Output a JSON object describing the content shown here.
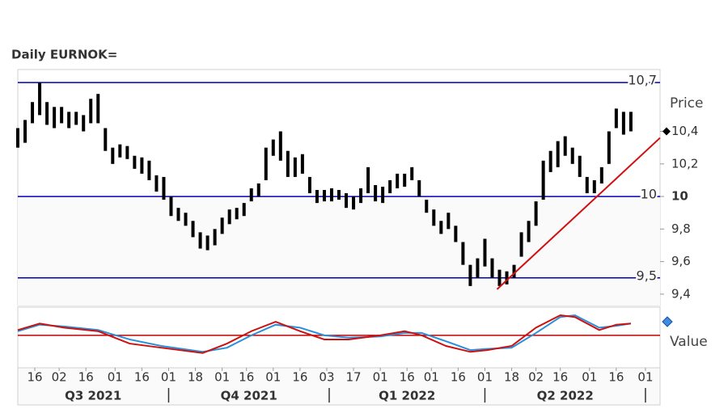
{
  "chart_data": [
    {
      "type": "ohlc",
      "title": "Daily EURNOK=",
      "axis_label": "Price",
      "color": "#000000",
      "xlim": [
        0,
        264
      ],
      "ylim": [
        9.33,
        10.78
      ],
      "yticks": [
        {
          "value": 9.4,
          "label": "9,4"
        },
        {
          "value": 9.6,
          "label": "9,6"
        },
        {
          "value": 9.8,
          "label": "9,8"
        },
        10,
        {
          "value": 10.2,
          "label": "10,2"
        },
        {
          "value": 10.4,
          "label": "10,4"
        }
      ],
      "last_marker": 10.4,
      "levels": [
        {
          "value": 10.7,
          "label": "10,7"
        },
        {
          "value": 10,
          "label": "10"
        },
        {
          "value": 9.5,
          "label": "9,5"
        }
      ],
      "level_color": "#0000b0",
      "trendline": {
        "x": [
          197,
          264
        ],
        "y": [
          9.43,
          10.36
        ],
        "color": "#d01010"
      },
      "x": [
        0,
        3,
        6,
        9,
        12,
        15,
        18,
        21,
        24,
        27,
        30,
        33,
        36,
        39,
        42,
        45,
        48,
        51,
        54,
        57,
        60,
        63,
        66,
        69,
        72,
        75,
        78,
        81,
        84,
        87,
        90,
        93,
        96,
        99,
        102,
        105,
        108,
        111,
        114,
        117,
        120,
        123,
        126,
        129,
        132,
        135,
        138,
        141,
        144,
        147,
        150,
        153,
        156,
        159,
        162,
        165,
        168,
        171,
        174,
        177,
        180,
        183,
        186,
        189,
        192,
        195,
        198,
        201,
        204,
        207,
        210,
        213,
        216,
        219,
        222,
        225,
        228,
        231,
        234,
        237,
        240,
        243,
        246,
        249,
        252
      ],
      "high": [
        10.42,
        10.47,
        10.58,
        10.7,
        10.58,
        10.55,
        10.55,
        10.52,
        10.52,
        10.5,
        10.6,
        10.63,
        10.42,
        10.3,
        10.32,
        10.31,
        10.25,
        10.24,
        10.22,
        10.13,
        10.12,
        10.0,
        9.93,
        9.9,
        9.85,
        9.78,
        9.76,
        9.8,
        9.87,
        9.92,
        9.93,
        9.96,
        10.05,
        10.08,
        10.3,
        10.35,
        10.4,
        10.28,
        10.24,
        10.26,
        10.12,
        10.04,
        10.04,
        10.05,
        10.04,
        10.02,
        10.0,
        10.05,
        10.18,
        10.07,
        10.06,
        10.1,
        10.14,
        10.14,
        10.18,
        10.1,
        9.98,
        9.92,
        9.85,
        9.9,
        9.82,
        9.72,
        9.58,
        9.62,
        9.74,
        9.62,
        9.55,
        9.54,
        9.58,
        9.78,
        9.85,
        9.97,
        10.22,
        10.28,
        10.34,
        10.37,
        10.3,
        10.25,
        10.12,
        10.1,
        10.18,
        10.4,
        10.54,
        10.52,
        10.52
      ],
      "low": [
        10.3,
        10.33,
        10.45,
        10.5,
        10.44,
        10.42,
        10.45,
        10.42,
        10.44,
        10.4,
        10.45,
        10.45,
        10.28,
        10.2,
        10.24,
        10.23,
        10.17,
        10.14,
        10.1,
        10.03,
        9.98,
        9.88,
        9.85,
        9.82,
        9.75,
        9.68,
        9.67,
        9.7,
        9.77,
        9.83,
        9.86,
        9.88,
        9.97,
        10.0,
        10.1,
        10.25,
        10.22,
        10.12,
        10.12,
        10.14,
        10.02,
        9.96,
        9.97,
        9.97,
        9.98,
        9.93,
        9.92,
        9.96,
        10.02,
        9.97,
        9.96,
        10.02,
        10.05,
        10.06,
        10.1,
        10.0,
        9.9,
        9.82,
        9.77,
        9.8,
        9.72,
        9.58,
        9.45,
        9.5,
        9.57,
        9.5,
        9.45,
        9.46,
        9.5,
        9.63,
        9.72,
        9.82,
        9.98,
        10.15,
        10.18,
        10.25,
        10.2,
        10.12,
        10.02,
        10.02,
        10.08,
        10.2,
        10.42,
        10.38,
        10.4
      ]
    },
    {
      "type": "line",
      "axis_label": "Value",
      "xlim": [
        0,
        264
      ],
      "ylim": [
        0,
        100
      ],
      "threshold": 55,
      "threshold_color": "#c00000",
      "x": [
        0,
        9,
        19,
        33,
        46,
        59,
        76,
        86,
        96,
        106,
        116,
        126,
        136,
        149,
        159,
        166,
        176,
        186,
        193,
        203,
        213,
        223,
        229,
        239,
        246,
        252
      ],
      "series": [
        {
          "color": "#cc1111",
          "values": [
            64,
            75,
            68,
            62,
            41,
            34,
            25,
            41,
            62,
            78,
            62,
            48,
            48,
            55,
            62,
            55,
            37,
            27,
            30,
            37,
            68,
            89,
            86,
            64,
            73,
            75
          ]
        },
        {
          "color": "#2a8fd8",
          "values": [
            62,
            73,
            70,
            64,
            48,
            37,
            27,
            34,
            55,
            73,
            68,
            55,
            51,
            53,
            59,
            59,
            45,
            30,
            32,
            34,
            59,
            86,
            89,
            68,
            71,
            75
          ]
        }
      ],
      "xticks": [
        {
          "value": 7,
          "label": "16"
        },
        {
          "value": 17,
          "label": "02"
        },
        {
          "value": 28,
          "label": "16"
        },
        {
          "value": 40,
          "label": "01"
        },
        {
          "value": 51,
          "label": "16"
        },
        {
          "value": 62,
          "label": "01"
        },
        {
          "value": 73,
          "label": "18"
        },
        {
          "value": 84,
          "label": "01"
        },
        {
          "value": 94,
          "label": "16"
        },
        {
          "value": 105,
          "label": "01"
        },
        {
          "value": 116,
          "label": "16"
        },
        {
          "value": 127,
          "label": "03"
        },
        {
          "value": 138,
          "label": "17"
        },
        {
          "value": 149,
          "label": "01"
        },
        {
          "value": 160,
          "label": "16"
        },
        {
          "value": 170,
          "label": "01"
        },
        {
          "value": 181,
          "label": "16"
        },
        {
          "value": 192,
          "label": "01"
        },
        {
          "value": 203,
          "label": "18"
        },
        {
          "value": 213,
          "label": "02"
        },
        {
          "value": 223,
          "label": "16"
        },
        {
          "value": 235,
          "label": "01"
        },
        {
          "value": 246,
          "label": "16"
        },
        {
          "value": 258,
          "label": "01"
        }
      ],
      "quarters": [
        {
          "label": "Q3 2021",
          "end": 62
        },
        {
          "label": "Q4 2021",
          "end": 128
        },
        {
          "label": "Q1 2022",
          "end": 192
        },
        {
          "label": "Q2 2022",
          "end": 258
        }
      ]
    }
  ]
}
